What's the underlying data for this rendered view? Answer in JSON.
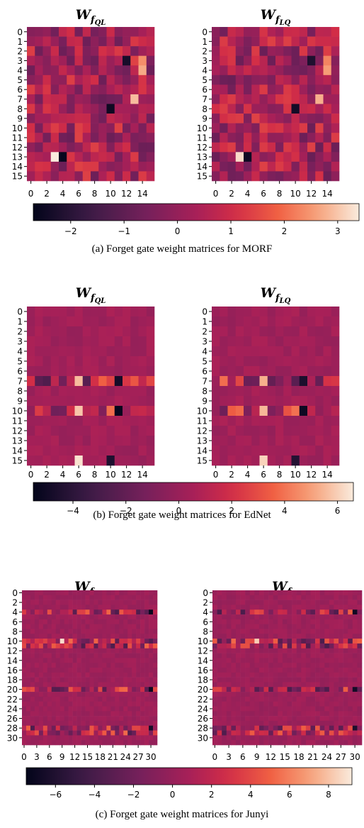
{
  "chart_data": [
    {
      "type": "heatmap",
      "panel": "a",
      "caption": "(a) Forget gate weight matrices for MORF",
      "titles": [
        "W_{f_{QL}}",
        "W_{f_{LQ}}"
      ],
      "matrix_size": 16,
      "row_ticks": [
        "0",
        "1",
        "2",
        "3",
        "4",
        "5",
        "6",
        "7",
        "8",
        "9",
        "10",
        "11",
        "12",
        "13",
        "14",
        "15"
      ],
      "col_ticks": [
        "0",
        "2",
        "4",
        "6",
        "8",
        "10",
        "12",
        "14"
      ],
      "colorbar": {
        "range": [
          -2.7,
          3.4
        ],
        "ticks": [
          "−2",
          "−1",
          "0",
          "1",
          "2",
          "3"
        ],
        "tick_values": [
          -2,
          -1,
          0,
          1,
          2,
          3
        ]
      },
      "value_note": "cell values estimated from color; ±1-ish spread around ~0.3 background",
      "seed": 11,
      "spread": 1.1,
      "bias": 0.3,
      "hot_cells": [
        [
          13,
          3,
          3.4
        ],
        [
          7,
          13,
          2.9
        ],
        [
          3,
          14,
          2.4
        ],
        [
          4,
          14,
          2.7
        ],
        [
          13,
          4,
          -2.6
        ],
        [
          8,
          10,
          -2.5
        ],
        [
          3,
          12,
          -2.3
        ]
      ]
    },
    {
      "type": "heatmap",
      "panel": "b",
      "caption": "(b) Forget gate weight matrices for EdNet",
      "titles": [
        "W_{f_{QL}}",
        "W_{f_{LQ}}"
      ],
      "matrix_size": 16,
      "row_ticks": [
        "0",
        "1",
        "2",
        "3",
        "4",
        "5",
        "6",
        "7",
        "8",
        "9",
        "10",
        "11",
        "12",
        "13",
        "14",
        "15"
      ],
      "col_ticks": [
        "0",
        "2",
        "4",
        "6",
        "8",
        "10",
        "12",
        "14"
      ],
      "colorbar": {
        "range": [
          -5.5,
          6.6
        ],
        "ticks": [
          "−4",
          "−2",
          "0",
          "2",
          "4",
          "6"
        ],
        "tick_values": [
          -4,
          -2,
          0,
          2,
          4,
          6
        ]
      },
      "value_note": "mostly near 0.3; rows 7 and 10 show strong weights",
      "seed": 29,
      "spread": 0.45,
      "bias": 0.3,
      "hot_rows": [
        7,
        10
      ],
      "hot_cells": [
        [
          10,
          6,
          5.8
        ],
        [
          10,
          11,
          -5.4
        ],
        [
          7,
          11,
          -4.8
        ],
        [
          7,
          6,
          5.6
        ],
        [
          15,
          6,
          6.4
        ],
        [
          15,
          10,
          -4.5
        ]
      ]
    },
    {
      "type": "heatmap",
      "panel": "c",
      "caption": "(c) Forget gate weight matrices for Junyi",
      "titles": [
        "W_{f_{QL}}",
        "W_{f_{LQ}}"
      ],
      "matrix_size": 32,
      "row_ticks": [
        "0",
        "2",
        "4",
        "6",
        "8",
        "10",
        "12",
        "14",
        "16",
        "18",
        "20",
        "22",
        "24",
        "26",
        "28",
        "30"
      ],
      "col_ticks": [
        "0",
        "3",
        "6",
        "9",
        "12",
        "15",
        "18",
        "21",
        "24",
        "27",
        "30"
      ],
      "colorbar": {
        "range": [
          -7.5,
          9.2
        ],
        "ticks": [
          "−6",
          "−4",
          "−2",
          "0",
          "2",
          "4",
          "6",
          "8"
        ],
        "tick_values": [
          -6,
          -4,
          -2,
          0,
          2,
          4,
          6,
          8
        ]
      },
      "value_note": "mostly near 0.3; rows 4,10,11,20,28,29 show strong weights",
      "seed": 53,
      "spread": 0.5,
      "bias": 0.3,
      "hot_rows": [
        4,
        10,
        11,
        20,
        28,
        29
      ],
      "hot_cells": [
        [
          10,
          9,
          8.8
        ],
        [
          4,
          30,
          -7.2
        ],
        [
          20,
          30,
          -7.0
        ],
        [
          28,
          30,
          -6.5
        ]
      ]
    }
  ],
  "captions": {
    "a": "(a) Forget gate weight matrices for MORF",
    "b": "(b) Forget gate weight matrices for EdNet",
    "c": "(c) Forget gate weight matrices for Junyi"
  },
  "colormap": "rocket",
  "colors": {
    "text": "#000000",
    "background": "#ffffff"
  }
}
